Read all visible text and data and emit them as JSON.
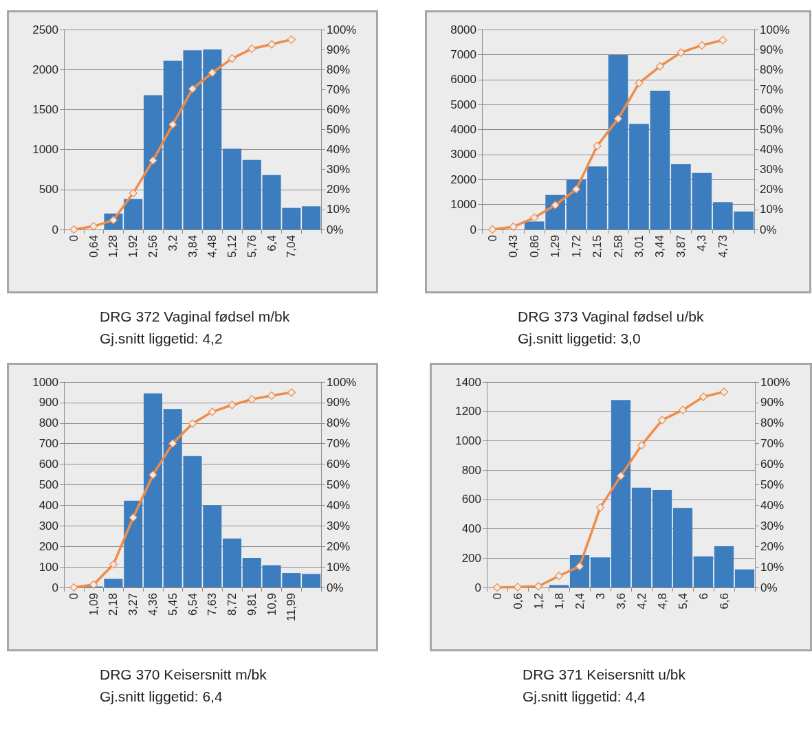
{
  "chart_data": [
    {
      "type": "bar",
      "title": "DRG 372 Vaginal fødsel m/bk",
      "subtitle": "Gj.snitt liggetid: 4,2",
      "categories": [
        "0",
        "0,64",
        "1,28",
        "1,92",
        "2,56",
        "3,2",
        "3,84",
        "4,48",
        "5,12",
        "5,76",
        "6,4",
        "7,04",
        null
      ],
      "series": [
        {
          "color": "#3c7dbf",
          "values": [
            0,
            0,
            200,
            380,
            1680,
            2110,
            2240,
            2250,
            1010,
            870,
            680,
            270,
            290
          ]
        },
        {
          "type": "line",
          "axis": "y2",
          "color": "#f08c48",
          "marker": "diamond",
          "values": [
            0,
            1.6,
            4.7,
            18.2,
            34.5,
            52.5,
            70.3,
            78.4,
            85.5,
            90.4,
            92.6,
            95,
            null
          ]
        }
      ],
      "ylim": [
        0,
        2500
      ],
      "yticks": [
        0,
        500,
        1000,
        1500,
        2000,
        2500
      ],
      "y2lim": [
        0,
        100
      ],
      "y2ticks": [
        {
          "value": 0,
          "label": "0%"
        },
        {
          "value": 10,
          "label": "10%"
        },
        {
          "value": 20,
          "label": "20%"
        },
        {
          "value": 30,
          "label": "30%"
        },
        {
          "value": 40,
          "label": "40%"
        },
        {
          "value": 50,
          "label": "50%"
        },
        {
          "value": 60,
          "label": "60%"
        },
        {
          "value": 70,
          "label": "70%"
        },
        {
          "value": 80,
          "label": "80%"
        },
        {
          "value": 90,
          "label": "90%"
        },
        {
          "value": 100,
          "label": "100%"
        }
      ],
      "grid": "y",
      "line_style": "solid"
    },
    {
      "type": "bar",
      "title": "DRG 373 Vaginal fødsel u/bk",
      "subtitle": "Gj.snitt liggetid: 3,0",
      "categories": [
        "0",
        "0,43",
        "0,86",
        "1,29",
        "1,72",
        "2,15",
        "2,58",
        "3,01",
        "3,44",
        "3,87",
        "4,3",
        "4,73",
        null
      ],
      "series": [
        {
          "color": "#3c7dbf",
          "values": [
            0,
            0,
            320,
            1380,
            2000,
            2520,
            6980,
            4230,
            5550,
            2610,
            2260,
            1090,
            720
          ]
        },
        {
          "type": "line",
          "axis": "y2",
          "color": "#f08c48",
          "marker": "diamond",
          "values": [
            0,
            1.4,
            5.9,
            12.2,
            20.1,
            41.8,
            55.4,
            73.2,
            81.6,
            88.5,
            92.1,
            94.7,
            null
          ]
        }
      ],
      "ylim": [
        0,
        8000
      ],
      "yticks": [
        0,
        1000,
        2000,
        3000,
        4000,
        5000,
        6000,
        7000,
        8000
      ],
      "y2lim": [
        0,
        100
      ],
      "y2ticks": [
        {
          "value": 0,
          "label": "0%"
        },
        {
          "value": 10,
          "label": "10%"
        },
        {
          "value": 20,
          "label": "20%"
        },
        {
          "value": 30,
          "label": "30%"
        },
        {
          "value": 40,
          "label": "40%"
        },
        {
          "value": 50,
          "label": "50%"
        },
        {
          "value": 60,
          "label": "60%"
        },
        {
          "value": 70,
          "label": "70%"
        },
        {
          "value": 80,
          "label": "80%"
        },
        {
          "value": 90,
          "label": "90%"
        },
        {
          "value": 100,
          "label": "100%"
        }
      ],
      "grid": "y",
      "line_style": "solid"
    },
    {
      "type": "bar",
      "title": "DRG 370 Keisersnitt  m/bk",
      "subtitle": "Gj.snitt liggetid: 6,4",
      "categories": [
        "0",
        "1,09",
        "2,18",
        "3,27",
        "4,36",
        "5,45",
        "6,54",
        "7,63",
        "8,72",
        "9,81",
        "10,9",
        "11,99",
        null
      ],
      "series": [
        {
          "color": "#3c7dbf",
          "values": [
            0,
            5,
            42,
            422,
            945,
            869,
            640,
            400,
            238,
            144,
            108,
            70,
            66
          ]
        },
        {
          "type": "line",
          "axis": "y2",
          "color": "#f08c48",
          "marker": "diamond",
          "values": [
            0,
            1.4,
            11.2,
            34,
            54.8,
            70.1,
            79.8,
            85.5,
            88.8,
            91.6,
            93.4,
            94.9,
            null
          ]
        }
      ],
      "ylim": [
        0,
        1000
      ],
      "yticks": [
        0,
        100,
        200,
        300,
        400,
        500,
        600,
        700,
        800,
        900,
        1000
      ],
      "y2lim": [
        0,
        100
      ],
      "y2ticks": [
        {
          "value": 0,
          "label": "0%"
        },
        {
          "value": 10,
          "label": "10%"
        },
        {
          "value": 20,
          "label": "20%"
        },
        {
          "value": 30,
          "label": "30%"
        },
        {
          "value": 40,
          "label": "40%"
        },
        {
          "value": 50,
          "label": "50%"
        },
        {
          "value": 60,
          "label": "60%"
        },
        {
          "value": 70,
          "label": "70%"
        },
        {
          "value": 80,
          "label": "80%"
        },
        {
          "value": 90,
          "label": "90%"
        },
        {
          "value": 100,
          "label": "100%"
        }
      ],
      "grid": "y",
      "line_style": "solid"
    },
    {
      "type": "bar",
      "title": "DRG 371 Keisersnitt u/bk",
      "subtitle": "Gj.snitt liggetid: 4,4",
      "categories": [
        "0",
        "0,6",
        "1,2",
        "1,8",
        "2,4",
        "3",
        "3,6",
        "4,2",
        "4,8",
        "5,4",
        "6",
        "6,6",
        null
      ],
      "series": [
        {
          "color": "#3c7dbf",
          "values": [
            0,
            0,
            null,
            16,
            220,
            205,
            1277,
            680,
            665,
            542,
            212,
            281,
            123
          ]
        },
        {
          "type": "line",
          "axis": "y2",
          "color": "#f08c48",
          "marker": "diamond",
          "values": [
            0,
            0.2,
            0.6,
            5.6,
            10.3,
            38.9,
            54.3,
            69.2,
            81.5,
            86.4,
            92.8,
            95.2,
            null
          ]
        }
      ],
      "ylim": [
        0,
        1400
      ],
      "yticks": [
        0,
        200,
        400,
        600,
        800,
        1000,
        1200,
        1400
      ],
      "y2lim": [
        0,
        100
      ],
      "y2ticks": [
        {
          "value": 0,
          "label": "0%"
        },
        {
          "value": 10,
          "label": "10%"
        },
        {
          "value": 20,
          "label": "20%"
        },
        {
          "value": 30,
          "label": "30%"
        },
        {
          "value": 40,
          "label": "40%"
        },
        {
          "value": 50,
          "label": "50%"
        },
        {
          "value": 60,
          "label": "60%"
        },
        {
          "value": 70,
          "label": "70%"
        },
        {
          "value": 80,
          "label": "80%"
        },
        {
          "value": 90,
          "label": "90%"
        },
        {
          "value": 100,
          "label": "100%"
        }
      ],
      "grid": "y",
      "line_style": "solid"
    }
  ]
}
